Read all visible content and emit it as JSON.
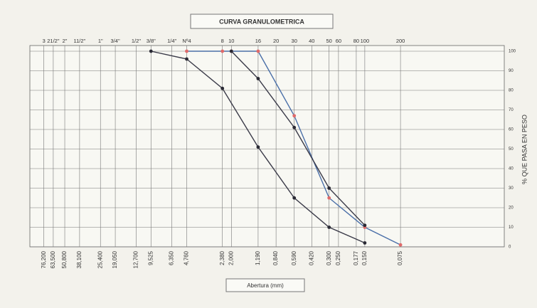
{
  "chart_data": {
    "type": "line",
    "title": "CURVA GRANULOMETRICA",
    "x_label": "Abertura (mm)",
    "y_label": "% QUE PASA EN PESO",
    "x_log": true,
    "xlim": [
      100,
      0.01
    ],
    "ylim": [
      0,
      100
    ],
    "yticks": [
      0,
      10,
      20,
      30,
      40,
      50,
      60,
      70,
      80,
      90,
      100
    ],
    "xticks": [
      {
        "value": 76.2,
        "label": "76,200"
      },
      {
        "value": 63.5,
        "label": "63,500"
      },
      {
        "value": 50.8,
        "label": "50,800"
      },
      {
        "value": 38.1,
        "label": "38,100"
      },
      {
        "value": 25.4,
        "label": "25,400"
      },
      {
        "value": 19.05,
        "label": "19,050"
      },
      {
        "value": 12.7,
        "label": "12,700"
      },
      {
        "value": 9.525,
        "label": "9,525"
      },
      {
        "value": 6.35,
        "label": "6,350"
      },
      {
        "value": 4.76,
        "label": "4,760"
      },
      {
        "value": 2.38,
        "label": "2,380"
      },
      {
        "value": 2,
        "label": "2,000"
      },
      {
        "value": 1.19,
        "label": "1,190"
      },
      {
        "value": 0.84,
        "label": "0,840"
      },
      {
        "value": 0.59,
        "label": "0,590"
      },
      {
        "value": 0.42,
        "label": "0,420"
      },
      {
        "value": 0.3,
        "label": "0,300"
      },
      {
        "value": 0.25,
        "label": "0,250"
      },
      {
        "value": 0.177,
        "label": "0,177"
      },
      {
        "value": 0.15,
        "label": "0,150"
      },
      {
        "value": 0.075,
        "label": "0,075"
      }
    ],
    "sieves": [
      "3",
      "21/2\"",
      "2\"",
      "11/2\"",
      "1\"",
      "3/4\"",
      "1/2\"",
      "3/8\"",
      "1/4\"",
      "Nº4",
      "8",
      "10",
      "16",
      "20",
      "30",
      "40",
      "50",
      "60",
      "80",
      "100",
      "200"
    ],
    "grid": true,
    "series": [
      {
        "color": "#3a3a48",
        "marker_color": "#2a2a35",
        "x": [
          9.525,
          4.76,
          2.38,
          1.19,
          0.59,
          0.3,
          0.15
        ],
        "values": [
          100,
          96,
          81,
          51,
          25,
          10,
          2
        ]
      },
      {
        "color": "#4a6fa8",
        "marker_color": "#e06a6a",
        "x": [
          4.76,
          2.38,
          2,
          1.19,
          0.59,
          0.3,
          0.15,
          0.075
        ],
        "values": [
          100,
          100,
          100,
          100,
          67,
          25,
          10,
          1
        ]
      },
      {
        "color": "#3a3a48",
        "marker_color": "#2a2a35",
        "x": [
          2,
          1.19,
          0.59,
          0.3,
          0.15
        ],
        "values": [
          100,
          86,
          61,
          30,
          11
        ]
      }
    ]
  }
}
